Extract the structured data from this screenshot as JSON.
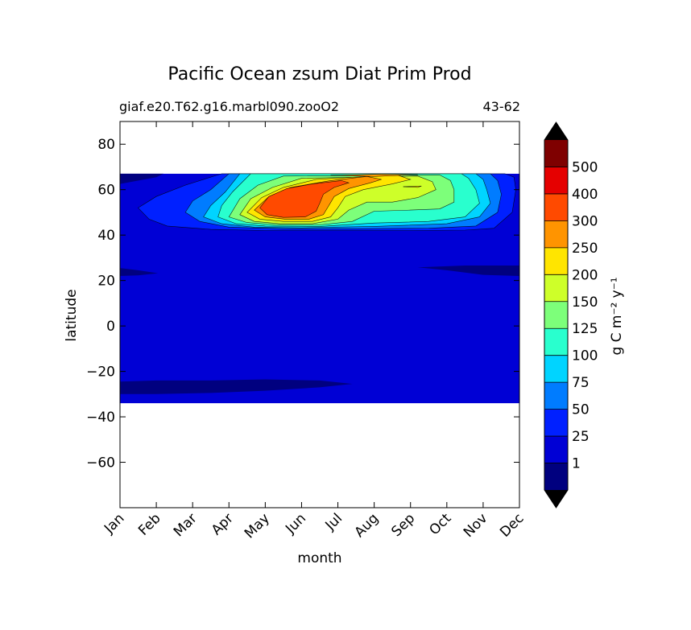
{
  "chart_data": {
    "type": "heatmap",
    "title": "Pacific Ocean zsum Diat Prim Prod",
    "subtitle_left": "giaf.e20.T62.g16.marbl090.zooO2",
    "subtitle_right": "43-62",
    "xlabel": "month",
    "ylabel": "latitude",
    "x_ticks": [
      "Jan",
      "Feb",
      "Mar",
      "Apr",
      "May",
      "Jun",
      "Jul",
      "Aug",
      "Sep",
      "Oct",
      "Nov",
      "Dec"
    ],
    "xlim": [
      0,
      11
    ],
    "ylim": [
      -80,
      90
    ],
    "y_ticks": [
      80,
      60,
      40,
      20,
      0,
      -20,
      -40,
      -60
    ],
    "y_tick_labels": [
      "80",
      "60",
      "40",
      "20",
      "0",
      "−20",
      "−40",
      "−60"
    ],
    "data_lat_range": [
      -34,
      67
    ],
    "colorbar": {
      "label": "g C m⁻² y⁻¹",
      "levels": [
        1,
        25,
        50,
        75,
        100,
        125,
        150,
        200,
        250,
        300,
        400,
        500
      ],
      "level_labels": [
        "1",
        "25",
        "50",
        "75",
        "100",
        "125",
        "150",
        "200",
        "250",
        "300",
        "400",
        "500"
      ],
      "colors": [
        "#00007f",
        "#0000d5",
        "#0020ff",
        "#007cff",
        "#00d4ff",
        "#29ffce",
        "#7dff7a",
        "#ceff29",
        "#ffe500",
        "#ff9400",
        "#ff4a00",
        "#e50000",
        "#7f0000"
      ],
      "extend": "both",
      "extend_colors": [
        "#000000",
        "#000000"
      ]
    },
    "features": [
      {
        "name": "background",
        "level_index": 1,
        "lat_range": [
          -34,
          67
        ],
        "month_range": [
          0,
          11
        ]
      },
      {
        "name": "north-pacific-bloom",
        "peak_month": 4,
        "peak_lat": 52,
        "peak_level_index": 10,
        "lat_range": [
          42,
          67
        ],
        "month_range": [
          0.5,
          10.8
        ]
      },
      {
        "name": "low-band-south",
        "level_index": 0,
        "lat_range": [
          -30,
          -24
        ],
        "month_range": [
          0,
          6.4
        ]
      },
      {
        "name": "low-band-north-jan",
        "level_index": 0,
        "lat_range": [
          22,
          25
        ],
        "month_range": [
          0,
          1
        ]
      },
      {
        "name": "low-band-north-oct",
        "level_index": 0,
        "lat_range": [
          22,
          26
        ],
        "month_range": [
          8.2,
          11
        ]
      }
    ]
  }
}
